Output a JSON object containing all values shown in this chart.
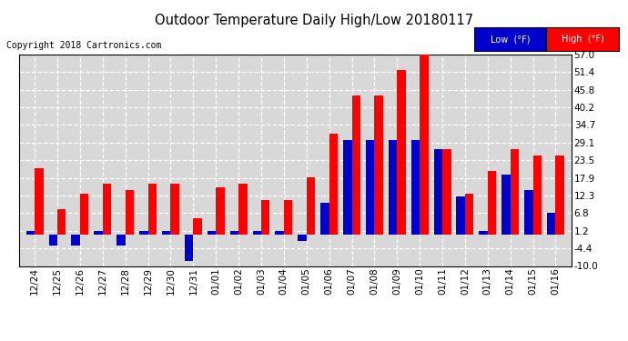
{
  "title": "Outdoor Temperature Daily High/Low 20180117",
  "copyright": "Copyright 2018 Cartronics.com",
  "legend_low": "Low  (°F)",
  "legend_high": "High  (°F)",
  "dates": [
    "12/24",
    "12/25",
    "12/26",
    "12/27",
    "12/28",
    "12/29",
    "12/30",
    "12/31",
    "01/01",
    "01/02",
    "01/03",
    "01/04",
    "01/05",
    "01/06",
    "01/07",
    "01/08",
    "01/09",
    "01/10",
    "01/11",
    "01/12",
    "01/13",
    "01/14",
    "01/15",
    "01/16"
  ],
  "high": [
    21.0,
    8.0,
    13.0,
    16.0,
    14.0,
    16.0,
    16.0,
    5.0,
    15.0,
    16.0,
    11.0,
    11.0,
    18.0,
    32.0,
    44.0,
    44.0,
    52.0,
    57.0,
    27.0,
    13.0,
    20.0,
    27.0,
    25.0,
    25.0
  ],
  "low": [
    1.2,
    -3.5,
    -3.5,
    1.2,
    -3.5,
    1.2,
    1.2,
    -8.5,
    1.2,
    1.2,
    1.2,
    1.2,
    -2.0,
    10.0,
    30.0,
    30.0,
    30.0,
    30.0,
    27.0,
    12.0,
    1.2,
    19.0,
    14.0,
    7.0
  ],
  "ylim": [
    -10.0,
    57.0
  ],
  "ytick_values": [
    -10.0,
    -4.4,
    1.2,
    6.8,
    12.3,
    17.9,
    23.5,
    29.1,
    34.7,
    40.2,
    45.8,
    51.4,
    57.0
  ],
  "ytick_labels": [
    "-10.0",
    "-4.4",
    "1.2",
    "6.8",
    "12.3",
    "17.9",
    "23.5",
    "29.1",
    "34.7",
    "40.2",
    "45.8",
    "51.4",
    "57.0"
  ],
  "high_color": "#ff0000",
  "low_color": "#0000cc",
  "bg_color": "#ffffff",
  "plot_bg": "#d8d8d8",
  "bar_width": 0.38
}
